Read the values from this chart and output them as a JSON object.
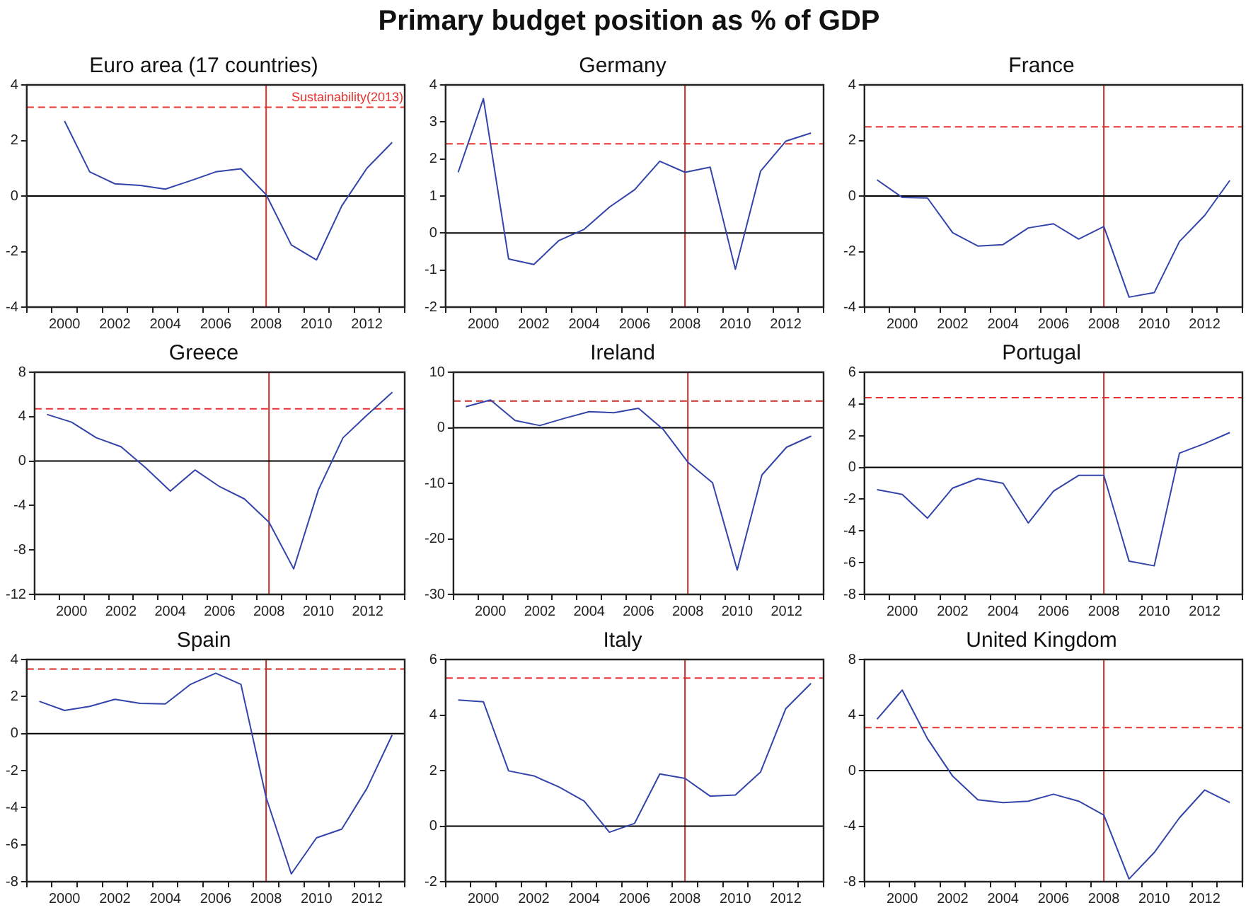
{
  "chart_data": [
    {
      "type": "other",
      "title": "Primary budget position as % of GDP"
    },
    {
      "type": "line",
      "title": "Euro area (17 countries)",
      "x": [
        2000,
        2001,
        2002,
        2003,
        2004,
        2005,
        2006,
        2007,
        2008,
        2009,
        2010,
        2011,
        2012,
        2013
      ],
      "values": [
        2.7,
        0.87,
        0.44,
        0.38,
        0.25,
        0.55,
        0.87,
        0.98,
        0.05,
        -1.76,
        -2.3,
        -0.36,
        1.0,
        1.93
      ],
      "color": "#3344aa",
      "xlim": [
        1998.5,
        2013.5
      ],
      "xticks": [
        {
          "value": 1998.5,
          "label": null
        },
        {
          "value": 1999.5,
          "label": null
        },
        2000,
        {
          "value": 2000.5,
          "label": null
        },
        {
          "value": 2001.5,
          "label": null
        },
        2002,
        {
          "value": 2002.5,
          "label": null
        },
        {
          "value": 2003.5,
          "label": null
        },
        2004,
        {
          "value": 2004.5,
          "label": null
        },
        {
          "value": 2005.5,
          "label": null
        },
        2006,
        {
          "value": 2006.5,
          "label": null
        },
        {
          "value": 2007.5,
          "label": null
        },
        2008,
        {
          "value": 2008.5,
          "label": null
        },
        {
          "value": 2009.5,
          "label": null
        },
        2010,
        {
          "value": 2010.5,
          "label": null
        },
        {
          "value": 2011.5,
          "label": null
        },
        2012,
        {
          "value": 2012.5,
          "label": null
        },
        {
          "value": 2013.5,
          "label": null
        }
      ],
      "ylim": [
        -4,
        4
      ],
      "yticks": [
        -4,
        -2,
        0,
        2,
        4
      ],
      "ref_lines": [
        {
          "axis": "y",
          "value": 3.2,
          "label": "Sustainability(2013)",
          "color": "#e8322e",
          "line_style": "dashed"
        },
        {
          "axis": "x",
          "value": 2008,
          "color": "#e8322e"
        },
        {
          "axis": "y",
          "value": 0,
          "color": "#000000"
        }
      ]
    },
    {
      "type": "line",
      "title": "Germany",
      "x": [
        1999,
        2000,
        2001,
        2002,
        2003,
        2004,
        2005,
        2006,
        2007,
        2008,
        2009,
        2010,
        2011,
        2012,
        2013
      ],
      "values": [
        1.64,
        3.63,
        -0.7,
        -0.85,
        -0.2,
        0.1,
        0.7,
        1.17,
        1.94,
        1.64,
        1.78,
        -0.98,
        1.67,
        2.48,
        2.7
      ],
      "color": "#3344aa",
      "xlim": [
        1998.5,
        2013.5
      ],
      "xticks": [
        {
          "value": 1998.5,
          "label": null
        },
        {
          "value": 1999.5,
          "label": null
        },
        2000,
        {
          "value": 2000.5,
          "label": null
        },
        {
          "value": 2001.5,
          "label": null
        },
        2002,
        {
          "value": 2002.5,
          "label": null
        },
        {
          "value": 2003.5,
          "label": null
        },
        2004,
        {
          "value": 2004.5,
          "label": null
        },
        {
          "value": 2005.5,
          "label": null
        },
        2006,
        {
          "value": 2006.5,
          "label": null
        },
        {
          "value": 2007.5,
          "label": null
        },
        2008,
        {
          "value": 2008.5,
          "label": null
        },
        {
          "value": 2009.5,
          "label": null
        },
        2010,
        {
          "value": 2010.5,
          "label": null
        },
        {
          "value": 2011.5,
          "label": null
        },
        2012,
        {
          "value": 2012.5,
          "label": null
        },
        {
          "value": 2013.5,
          "label": null
        }
      ],
      "ylim": [
        -2,
        4
      ],
      "yticks": [
        -2,
        -1,
        0,
        1,
        2,
        3,
        4
      ],
      "ref_lines": [
        {
          "axis": "y",
          "value": 2.41,
          "color": "#e8322e",
          "line_style": "dashed"
        },
        {
          "axis": "x",
          "value": 2008,
          "color": "#c0302a"
        },
        {
          "axis": "y",
          "value": 0,
          "color": "#000000"
        }
      ]
    },
    {
      "type": "line",
      "title": "France",
      "x": [
        1999,
        2000,
        2001,
        2002,
        2003,
        2004,
        2005,
        2006,
        2007,
        2008,
        2009,
        2010,
        2011,
        2012,
        2013
      ],
      "values": [
        0.58,
        -0.05,
        -0.07,
        -1.32,
        -1.8,
        -1.75,
        -1.15,
        -1.0,
        -1.55,
        -1.1,
        -3.64,
        -3.48,
        -1.64,
        -0.7,
        0.56
      ],
      "color": "#3344aa",
      "xlim": [
        1998.5,
        2013.5
      ],
      "xticks": [
        {
          "value": 1998.5,
          "label": null
        },
        {
          "value": 1999.5,
          "label": null
        },
        2000,
        {
          "value": 2000.5,
          "label": null
        },
        {
          "value": 2001.5,
          "label": null
        },
        2002,
        {
          "value": 2002.5,
          "label": null
        },
        {
          "value": 2003.5,
          "label": null
        },
        2004,
        {
          "value": 2004.5,
          "label": null
        },
        {
          "value": 2005.5,
          "label": null
        },
        2006,
        {
          "value": 2006.5,
          "label": null
        },
        {
          "value": 2007.5,
          "label": null
        },
        2008,
        {
          "value": 2008.5,
          "label": null
        },
        {
          "value": 2009.5,
          "label": null
        },
        2010,
        {
          "value": 2010.5,
          "label": null
        },
        {
          "value": 2011.5,
          "label": null
        },
        2012,
        {
          "value": 2012.5,
          "label": null
        },
        {
          "value": 2013.5,
          "label": null
        }
      ],
      "ylim": [
        -4,
        4
      ],
      "yticks": [
        -4,
        -2,
        0,
        2,
        4
      ],
      "ref_lines": [
        {
          "axis": "y",
          "value": 2.49,
          "color": "#e8322e",
          "line_style": "dashed"
        },
        {
          "axis": "x",
          "value": 2008,
          "color": "#c0302a"
        },
        {
          "axis": "y",
          "value": 0,
          "color": "#000000"
        }
      ]
    },
    {
      "type": "line",
      "title": "Greece",
      "x": [
        1999,
        2000,
        2001,
        2002,
        2003,
        2004,
        2005,
        2006,
        2007,
        2008,
        2009,
        2010,
        2011,
        2012,
        2013
      ],
      "values": [
        4.2,
        3.5,
        2.1,
        1.3,
        -0.6,
        -2.7,
        -0.8,
        -2.3,
        -3.4,
        -5.5,
        -9.7,
        -2.6,
        2.1,
        4.2,
        6.2
      ],
      "color": "#3344aa",
      "xlim": [
        1998.5,
        2013.5
      ],
      "xticks": [
        {
          "value": 1998.5,
          "label": null
        },
        {
          "value": 1999.5,
          "label": null
        },
        2000,
        {
          "value": 2000.5,
          "label": null
        },
        {
          "value": 2001.5,
          "label": null
        },
        2002,
        {
          "value": 2002.5,
          "label": null
        },
        {
          "value": 2003.5,
          "label": null
        },
        2004,
        {
          "value": 2004.5,
          "label": null
        },
        {
          "value": 2005.5,
          "label": null
        },
        2006,
        {
          "value": 2006.5,
          "label": null
        },
        {
          "value": 2007.5,
          "label": null
        },
        2008,
        {
          "value": 2008.5,
          "label": null
        },
        {
          "value": 2009.5,
          "label": null
        },
        2010,
        {
          "value": 2010.5,
          "label": null
        },
        {
          "value": 2011.5,
          "label": null
        },
        2012,
        {
          "value": 2012.5,
          "label": null
        },
        {
          "value": 2013.5,
          "label": null
        }
      ],
      "ylim": [
        -12,
        8
      ],
      "yticks": [
        -12,
        -8,
        -4,
        0,
        4,
        8
      ],
      "ref_lines": [
        {
          "axis": "y",
          "value": 4.7,
          "color": "#e8322e",
          "line_style": "dashed"
        },
        {
          "axis": "x",
          "value": 2008,
          "color": "#c0302a"
        },
        {
          "axis": "y",
          "value": 0,
          "color": "#000000"
        }
      ]
    },
    {
      "type": "line",
      "title": "Ireland",
      "x": [
        1999,
        2000,
        2001,
        2002,
        2003,
        2004,
        2005,
        2006,
        2007,
        2008,
        2009,
        2010,
        2011,
        2012,
        2013
      ],
      "values": [
        3.8,
        5.0,
        1.3,
        0.4,
        1.7,
        2.9,
        2.7,
        3.5,
        -0.3,
        -6.2,
        -9.9,
        -25.6,
        -8.5,
        -3.5,
        -1.5
      ],
      "color": "#3344aa",
      "xlim": [
        1998.5,
        2013.5
      ],
      "xticks": [
        {
          "value": 1998.5,
          "label": null
        },
        {
          "value": 1999.5,
          "label": null
        },
        2000,
        {
          "value": 2000.5,
          "label": null
        },
        {
          "value": 2001.5,
          "label": null
        },
        2002,
        {
          "value": 2002.5,
          "label": null
        },
        {
          "value": 2003.5,
          "label": null
        },
        2004,
        {
          "value": 2004.5,
          "label": null
        },
        {
          "value": 2005.5,
          "label": null
        },
        2006,
        {
          "value": 2006.5,
          "label": null
        },
        {
          "value": 2007.5,
          "label": null
        },
        2008,
        {
          "value": 2008.5,
          "label": null
        },
        {
          "value": 2009.5,
          "label": null
        },
        2010,
        {
          "value": 2010.5,
          "label": null
        },
        {
          "value": 2011.5,
          "label": null
        },
        2012,
        {
          "value": 2012.5,
          "label": null
        },
        {
          "value": 2013.5,
          "label": null
        }
      ],
      "ylim": [
        -30,
        10
      ],
      "yticks": [
        -30,
        -20,
        -10,
        0,
        10
      ],
      "ref_lines": [
        {
          "axis": "y",
          "value": 4.8,
          "color": "#c0302a",
          "line_style": "dashed"
        },
        {
          "axis": "x",
          "value": 2008,
          "color": "#c0302a"
        },
        {
          "axis": "y",
          "value": 0,
          "color": "#000000"
        }
      ]
    },
    {
      "type": "line",
      "title": "Portugal",
      "x": [
        1999,
        2000,
        2001,
        2002,
        2003,
        2004,
        2005,
        2006,
        2007,
        2008,
        2009,
        2010,
        2011,
        2012,
        2013
      ],
      "values": [
        -1.4,
        -1.7,
        -3.2,
        -1.3,
        -0.7,
        -1.0,
        -3.5,
        -1.5,
        -0.5,
        -0.5,
        -5.9,
        -6.2,
        0.9,
        1.5,
        2.2
      ],
      "color": "#3344aa",
      "xlim": [
        1998.5,
        2013.5
      ],
      "xticks": [
        {
          "value": 1998.5,
          "label": null
        },
        {
          "value": 1999.5,
          "label": null
        },
        2000,
        {
          "value": 2000.5,
          "label": null
        },
        {
          "value": 2001.5,
          "label": null
        },
        2002,
        {
          "value": 2002.5,
          "label": null
        },
        {
          "value": 2003.5,
          "label": null
        },
        2004,
        {
          "value": 2004.5,
          "label": null
        },
        {
          "value": 2005.5,
          "label": null
        },
        2006,
        {
          "value": 2006.5,
          "label": null
        },
        {
          "value": 2007.5,
          "label": null
        },
        2008,
        {
          "value": 2008.5,
          "label": null
        },
        {
          "value": 2009.5,
          "label": null
        },
        2010,
        {
          "value": 2010.5,
          "label": null
        },
        {
          "value": 2011.5,
          "label": null
        },
        2012,
        {
          "value": 2012.5,
          "label": null
        },
        {
          "value": 2013.5,
          "label": null
        }
      ],
      "ylim": [
        -8,
        6
      ],
      "yticks": [
        -8,
        -6,
        -4,
        -2,
        0,
        2,
        4,
        6
      ],
      "ref_lines": [
        {
          "axis": "y",
          "value": 4.4,
          "color": "#e8322e",
          "line_style": "dashed"
        },
        {
          "axis": "x",
          "value": 2008,
          "color": "#c0302a"
        },
        {
          "axis": "y",
          "value": 0,
          "color": "#000000"
        }
      ]
    },
    {
      "type": "line",
      "title": "Spain",
      "x": [
        1999,
        2000,
        2001,
        2002,
        2003,
        2004,
        2005,
        2006,
        2007,
        2008,
        2009,
        2010,
        2011,
        2012,
        2013
      ],
      "values": [
        1.74,
        1.25,
        1.47,
        1.85,
        1.63,
        1.6,
        2.66,
        3.26,
        2.66,
        -3.45,
        -7.58,
        -5.63,
        -5.16,
        -2.96,
        -0.08
      ],
      "color": "#3344aa",
      "xlim": [
        1998.5,
        2013.5
      ],
      "xticks": [
        {
          "value": 1998.5,
          "label": null
        },
        {
          "value": 1999.5,
          "label": null
        },
        2000,
        {
          "value": 2000.5,
          "label": null
        },
        {
          "value": 2001.5,
          "label": null
        },
        2002,
        {
          "value": 2002.5,
          "label": null
        },
        {
          "value": 2003.5,
          "label": null
        },
        2004,
        {
          "value": 2004.5,
          "label": null
        },
        {
          "value": 2005.5,
          "label": null
        },
        2006,
        {
          "value": 2006.5,
          "label": null
        },
        {
          "value": 2007.5,
          "label": null
        },
        2008,
        {
          "value": 2008.5,
          "label": null
        },
        {
          "value": 2009.5,
          "label": null
        },
        2010,
        {
          "value": 2010.5,
          "label": null
        },
        {
          "value": 2011.5,
          "label": null
        },
        2012,
        {
          "value": 2012.5,
          "label": null
        },
        {
          "value": 2013.5,
          "label": null
        }
      ],
      "ylim": [
        -8,
        4
      ],
      "yticks": [
        -8,
        -6,
        -4,
        -2,
        0,
        2,
        4
      ],
      "ref_lines": [
        {
          "axis": "y",
          "value": 3.48,
          "color": "#d02a22",
          "line_style": "dashed"
        },
        {
          "axis": "x",
          "value": 2008,
          "color": "#c0302a"
        },
        {
          "axis": "y",
          "value": 0,
          "color": "#000000"
        }
      ]
    },
    {
      "type": "line",
      "title": "Italy",
      "x": [
        1999,
        2000,
        2001,
        2002,
        2003,
        2004,
        2005,
        2006,
        2007,
        2008,
        2009,
        2010,
        2011,
        2012,
        2013
      ],
      "values": [
        4.54,
        4.48,
        1.99,
        1.81,
        1.41,
        0.9,
        -0.22,
        0.1,
        1.88,
        1.72,
        1.08,
        1.12,
        1.95,
        4.23,
        5.14
      ],
      "color": "#3344aa",
      "xlim": [
        1998.5,
        2013.5
      ],
      "xticks": [
        {
          "value": 1998.5,
          "label": null
        },
        {
          "value": 1999.5,
          "label": null
        },
        2000,
        {
          "value": 2000.5,
          "label": null
        },
        {
          "value": 2001.5,
          "label": null
        },
        2002,
        {
          "value": 2002.5,
          "label": null
        },
        {
          "value": 2003.5,
          "label": null
        },
        2004,
        {
          "value": 2004.5,
          "label": null
        },
        {
          "value": 2005.5,
          "label": null
        },
        2006,
        {
          "value": 2006.5,
          "label": null
        },
        {
          "value": 2007.5,
          "label": null
        },
        2008,
        {
          "value": 2008.5,
          "label": null
        },
        {
          "value": 2009.5,
          "label": null
        },
        2010,
        {
          "value": 2010.5,
          "label": null
        },
        {
          "value": 2011.5,
          "label": null
        },
        2012,
        {
          "value": 2012.5,
          "label": null
        },
        {
          "value": 2013.5,
          "label": null
        }
      ],
      "ylim": [
        -2,
        6
      ],
      "yticks": [
        -2,
        0,
        2,
        4,
        6
      ],
      "ref_lines": [
        {
          "axis": "y",
          "value": 5.33,
          "color": "#e8322e",
          "line_style": "dashed"
        },
        {
          "axis": "x",
          "value": 2008,
          "color": "#c0302a"
        },
        {
          "axis": "y",
          "value": 0,
          "color": "#000000"
        }
      ]
    },
    {
      "type": "line",
      "title": "United Kingdom",
      "x": [
        1999,
        2000,
        2001,
        2002,
        2003,
        2004,
        2005,
        2006,
        2007,
        2008,
        2009,
        2010,
        2011,
        2012,
        2013
      ],
      "values": [
        3.7,
        5.8,
        2.3,
        -0.4,
        -2.1,
        -2.3,
        -2.2,
        -1.7,
        -2.2,
        -3.2,
        -7.8,
        -5.9,
        -3.4,
        -1.4,
        -2.3
      ],
      "color": "#3344aa",
      "xlim": [
        1998.5,
        2013.5
      ],
      "xticks": [
        {
          "value": 1998.5,
          "label": null
        },
        {
          "value": 1999.5,
          "label": null
        },
        2000,
        {
          "value": 2000.5,
          "label": null
        },
        {
          "value": 2001.5,
          "label": null
        },
        2002,
        {
          "value": 2002.5,
          "label": null
        },
        {
          "value": 2003.5,
          "label": null
        },
        2004,
        {
          "value": 2004.5,
          "label": null
        },
        {
          "value": 2005.5,
          "label": null
        },
        2006,
        {
          "value": 2006.5,
          "label": null
        },
        {
          "value": 2007.5,
          "label": null
        },
        2008,
        {
          "value": 2008.5,
          "label": null
        },
        {
          "value": 2009.5,
          "label": null
        },
        2010,
        {
          "value": 2010.5,
          "label": null
        },
        {
          "value": 2011.5,
          "label": null
        },
        2012,
        {
          "value": 2012.5,
          "label": null
        },
        {
          "value": 2013.5,
          "label": null
        }
      ],
      "ylim": [
        -8,
        8
      ],
      "yticks": [
        -8,
        -4,
        0,
        4,
        8
      ],
      "ref_lines": [
        {
          "axis": "y",
          "value": 3.1,
          "color": "#e8322e",
          "line_style": "dashed"
        },
        {
          "axis": "x",
          "value": 2008,
          "color": "#c0302a"
        },
        {
          "axis": "y",
          "value": 0,
          "color": "#000000"
        }
      ]
    }
  ]
}
